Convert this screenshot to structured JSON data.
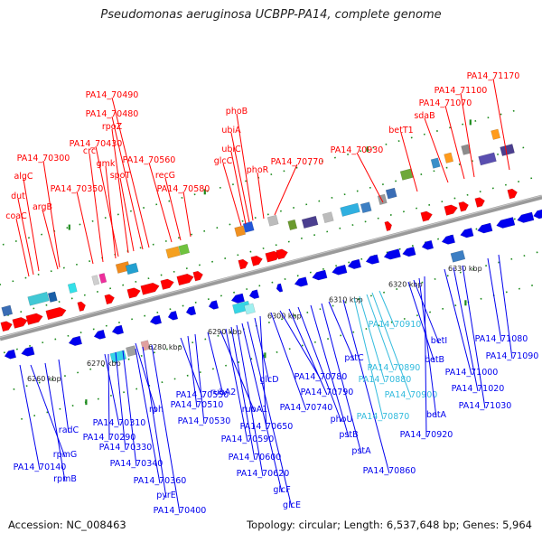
{
  "title": "Pseudomonas aeruginosa UCBPP-PA14, complete genome",
  "accession": "Accession: NC_008463",
  "summary": "Topology: circular; Length: 6,537,648 bp; Genes: 5,964",
  "colors": {
    "forward": "#ff0000",
    "reverse": "#0000ee",
    "rna": "#33bbdd",
    "backbone": "#9a9a9a",
    "tick": "#1c8a1c"
  },
  "scale_labels": [
    "6260 kbp",
    "6270 kbp",
    "6280 kbp",
    "6290 kbp",
    "6300 kbp",
    "6310 kbp",
    "6320 kbp",
    "6330 kbp"
  ],
  "top_labels": [
    "coaC",
    "dut",
    "algC",
    "PA14_70300",
    "argB",
    "PA14_70350",
    "crc",
    "gmk",
    "PA14_70430",
    "rpoZ",
    "spoT",
    "PA14_70480",
    "PA14_70490",
    "PA14_70560",
    "recG",
    "PA14_70580",
    "glcC",
    "ubiC",
    "ubiA",
    "phoB",
    "phoR",
    "PA14_70770",
    "PA14_70930",
    "betT1",
    "sdaB",
    "PA14_71070",
    "PA14_71100",
    "PA14_71170"
  ],
  "bottom_labels": [
    "PA14_70140",
    "rpmG",
    "rpmB",
    "radC",
    "PA14_70310",
    "PA14_70290",
    "PA14_70330",
    "PA14_70340",
    "PA14_70360",
    "pyrE",
    "PA14_70400",
    "rph",
    "PA14_70550",
    "PA14_70510",
    "PA14_70530",
    "rubA2",
    "rubA1",
    "PA14_70590",
    "PA14_70600",
    "PA14_70620",
    "glcF",
    "glcE",
    "glcD",
    "PA14_70650",
    "PA14_70740",
    "PA14_70780",
    "PA14_70790",
    "phoU",
    "pstB",
    "pstA",
    "pstC",
    "PA14_70860",
    "PA14_70870",
    "PA14_70880",
    "PA14_70890",
    "PA14_70900",
    "PA14_70910",
    "betB",
    "betI",
    "betA",
    "PA14_70920",
    "PA14_71000",
    "PA14_71020",
    "PA14_71030",
    "PA14_71080",
    "PA14_71090"
  ]
}
